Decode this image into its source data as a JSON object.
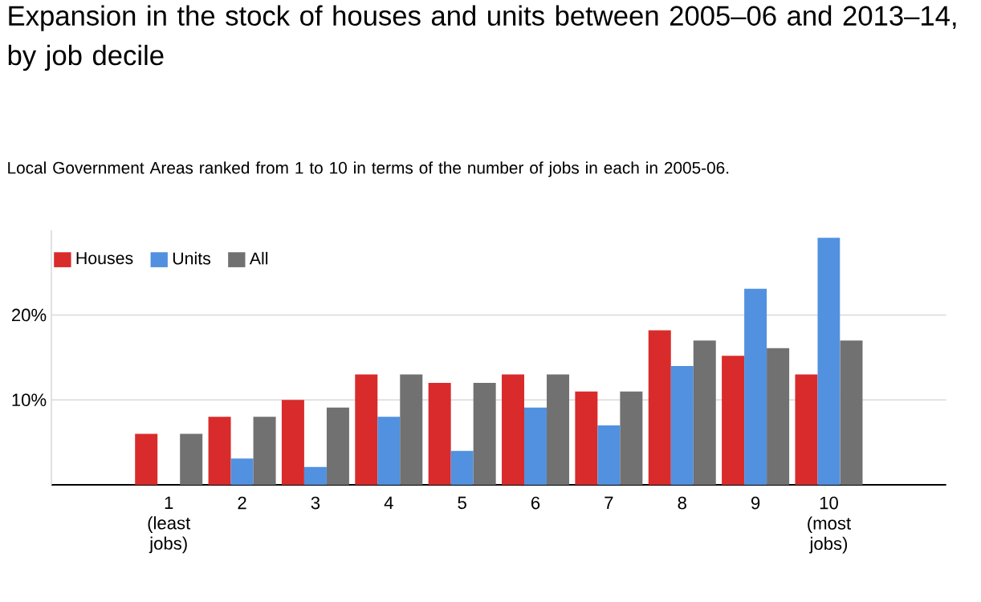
{
  "chart_data": {
    "type": "bar",
    "title": "Expansion in the stock of houses and units between 2005–06 and 2013–14, by job decile",
    "subtitle": "Local Government Areas ranked from 1 to 10 in terms of the number of jobs in each in 2005-06.",
    "categories": [
      "1 (least jobs)",
      "2",
      "3",
      "4",
      "5",
      "6",
      "7",
      "8",
      "9",
      "10 (most jobs)"
    ],
    "series": [
      {
        "name": "Houses",
        "color": "#d92b2b",
        "values": [
          6,
          8,
          10,
          13,
          12,
          13,
          11,
          18.2,
          15.2,
          13
        ]
      },
      {
        "name": "Units",
        "color": "#5191df",
        "values": [
          0,
          3.1,
          2.1,
          8,
          4,
          9.1,
          7,
          14,
          23.1,
          29.1
        ]
      },
      {
        "name": "All",
        "color": "#717171",
        "values": [
          6,
          8,
          9.1,
          13,
          12,
          13,
          11,
          17,
          16.1,
          17
        ]
      }
    ],
    "ylim": [
      0,
      30
    ],
    "yticks": [
      {
        "value": 10,
        "label": "10%"
      },
      {
        "value": 20,
        "label": "20%"
      }
    ],
    "grid": "y",
    "legend": "top left"
  }
}
